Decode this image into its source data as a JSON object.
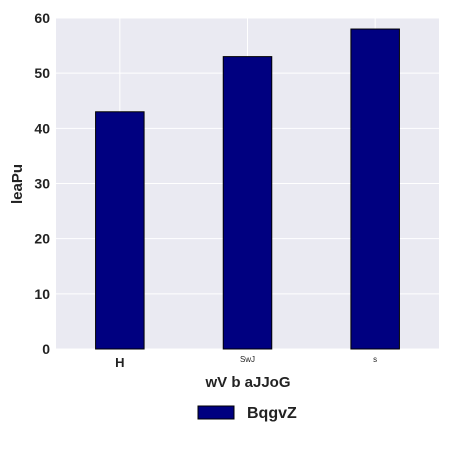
{
  "chart_data": {
    "type": "bar",
    "categories": [
      "H",
      "SwJ",
      "s"
    ],
    "series": [
      {
        "name": "BqgvZ",
        "values": [
          43,
          53,
          58
        ]
      }
    ],
    "xlabel": "wV b aJJoG",
    "ylabel": "leaPu",
    "ylim": [
      0,
      60
    ],
    "yticks": [
      0,
      10,
      20,
      30,
      40,
      50,
      60
    ],
    "grid": true,
    "legend_position": "bottom-center",
    "colors": {
      "bar": "#000080",
      "bar_edge": "#000000",
      "plot_background": "#eaeaf2",
      "grid": "#ffffff",
      "text": "#222222"
    }
  }
}
